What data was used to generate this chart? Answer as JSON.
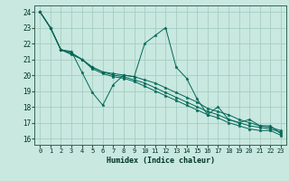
{
  "xlabel": "Humidex (Indice chaleur)",
  "ylabel": "",
  "xlim": [
    -0.5,
    23.5
  ],
  "ylim": [
    15.6,
    24.4
  ],
  "xticks": [
    0,
    1,
    2,
    3,
    4,
    5,
    6,
    7,
    8,
    9,
    10,
    11,
    12,
    13,
    14,
    15,
    16,
    17,
    18,
    19,
    20,
    21,
    22,
    23
  ],
  "yticks": [
    16,
    17,
    18,
    19,
    20,
    21,
    22,
    23,
    24
  ],
  "bg_color": "#c8e8e0",
  "grid_color": "#a0c8bc",
  "line_color": "#006655",
  "lines": [
    [
      24,
      23,
      21.6,
      21.5,
      20.2,
      18.9,
      18.1,
      19.4,
      20.0,
      19.9,
      22.0,
      22.5,
      23.0,
      20.5,
      19.8,
      18.5,
      17.5,
      18.0,
      17.2,
      17.0,
      17.2,
      16.8,
      16.8,
      16.3
    ],
    [
      24,
      23,
      21.6,
      21.4,
      21.0,
      20.5,
      20.2,
      20.1,
      20.0,
      19.9,
      19.7,
      19.5,
      19.2,
      18.9,
      18.6,
      18.3,
      17.9,
      17.7,
      17.5,
      17.2,
      17.0,
      16.8,
      16.7,
      16.5
    ],
    [
      24,
      23,
      21.6,
      21.4,
      21.0,
      20.5,
      20.2,
      20.0,
      19.9,
      19.7,
      19.5,
      19.2,
      18.9,
      18.6,
      18.3,
      18.0,
      17.7,
      17.5,
      17.2,
      17.0,
      16.8,
      16.7,
      16.6,
      16.4
    ],
    [
      24,
      23,
      21.6,
      21.3,
      21.0,
      20.4,
      20.1,
      19.9,
      19.8,
      19.6,
      19.3,
      19.0,
      18.7,
      18.4,
      18.1,
      17.8,
      17.5,
      17.3,
      17.0,
      16.8,
      16.6,
      16.5,
      16.5,
      16.2
    ]
  ]
}
